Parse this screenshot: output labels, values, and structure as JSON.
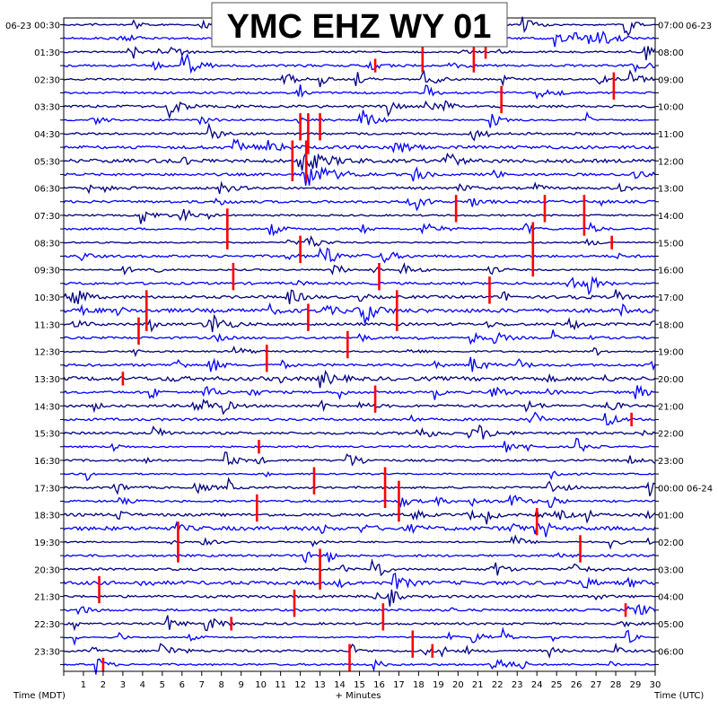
{
  "chart_data": {
    "type": "helicorder",
    "title": "YMC EHZ WY 01",
    "left_date": "06-23",
    "right_date": "06-23",
    "xlabel": "+ Minutes",
    "left_axis_label": "Time (MDT)",
    "right_axis_label": "Time (UTC)",
    "x_ticks": [
      1,
      2,
      3,
      4,
      5,
      6,
      7,
      8,
      9,
      10,
      11,
      12,
      13,
      14,
      15,
      16,
      17,
      18,
      19,
      20,
      21,
      22,
      23,
      24,
      25,
      26,
      27,
      28,
      29,
      30
    ],
    "xlim": [
      0,
      30
    ],
    "rows_per_hour": 2,
    "row_count": 48,
    "left_time_labels": [
      "00:30",
      "01:30",
      "02:30",
      "03:30",
      "04:30",
      "05:30",
      "06:30",
      "07:30",
      "08:30",
      "09:30",
      "10:30",
      "11:30",
      "12:30",
      "13:30",
      "14:30",
      "15:30",
      "16:30",
      "17:30",
      "18:30",
      "19:30",
      "20:30",
      "21:30",
      "22:30",
      "23:30"
    ],
    "right_time_labels": [
      "07:00",
      "08:00",
      "09:00",
      "10:00",
      "11:00",
      "12:00",
      "13:00",
      "14:00",
      "15:00",
      "16:00",
      "17:00",
      "18:00",
      "19:00",
      "20:00",
      "21:00",
      "22:00",
      "23:00",
      "00:00 06-24",
      "01:00",
      "02:00",
      "03:00",
      "04:00",
      "05:00",
      "06:00"
    ],
    "trace_colors": [
      "#000080",
      "#0000ff"
    ],
    "clip_color": "#ff0000",
    "grid": true
  }
}
